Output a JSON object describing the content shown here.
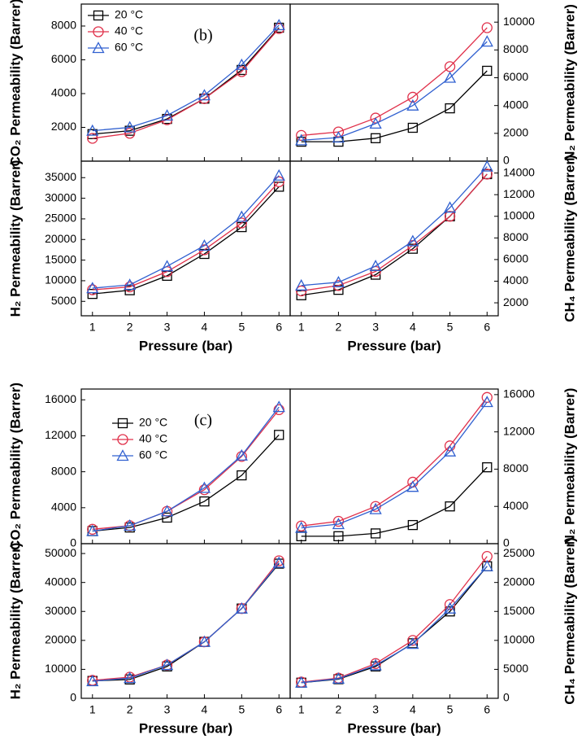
{
  "chart_data": [
    {
      "type": "line",
      "annotation": "(b)",
      "ylabel": "CO₂ Permeability (Barrer)",
      "y_side": "left",
      "legend": "upper left",
      "x": [
        1,
        2,
        3,
        4,
        5,
        6
      ],
      "xlim": [
        0.7,
        6.3
      ],
      "xticks": [
        1,
        2,
        3,
        4,
        5,
        6
      ],
      "ylim": [
        0,
        9300
      ],
      "yticks": [
        2000,
        4000,
        6000,
        8000
      ],
      "series": [
        {
          "name": "20 °C",
          "color": "#000000",
          "marker": "square",
          "values": [
            1600,
            1800,
            2500,
            3700,
            5400,
            7900
          ]
        },
        {
          "name": "40 °C",
          "color": "#e0304a",
          "marker": "circle",
          "values": [
            1350,
            1650,
            2450,
            3700,
            5300,
            7850
          ]
        },
        {
          "name": "60 °C",
          "color": "#3060d0",
          "marker": "triangle",
          "values": [
            1800,
            2000,
            2700,
            3900,
            5700,
            8050
          ]
        }
      ]
    },
    {
      "type": "line",
      "ylabel": "N₂ Permeability (Barrer)",
      "y_side": "right",
      "x": [
        1,
        2,
        3,
        4,
        5,
        6
      ],
      "xlim": [
        0.7,
        6.3
      ],
      "xticks": [
        1,
        2,
        3,
        4,
        5,
        6
      ],
      "ylim": [
        0,
        11300
      ],
      "yticks": [
        0,
        2000,
        4000,
        6000,
        8000,
        10000
      ],
      "series": [
        {
          "color": "#000000",
          "marker": "square",
          "values": [
            1400,
            1400,
            1650,
            2400,
            3800,
            6500
          ]
        },
        {
          "color": "#e0304a",
          "marker": "circle",
          "values": [
            1850,
            2100,
            3100,
            4600,
            6800,
            9600
          ]
        },
        {
          "color": "#3060d0",
          "marker": "triangle",
          "values": [
            1500,
            1700,
            2700,
            4000,
            6000,
            8600
          ]
        }
      ]
    },
    {
      "type": "line",
      "ylabel": "H₂ Permeability (Barrer)",
      "xlabel": "Pressure (bar)",
      "y_side": "left",
      "x": [
        1,
        2,
        3,
        4,
        5,
        6
      ],
      "xlim": [
        0.7,
        6.3
      ],
      "xticks": [
        1,
        2,
        3,
        4,
        5,
        6
      ],
      "ylim": [
        1500,
        39000
      ],
      "yticks": [
        5000,
        10000,
        15000,
        20000,
        25000,
        30000,
        35000
      ],
      "series": [
        {
          "color": "#000000",
          "marker": "square",
          "values": [
            6800,
            7700,
            11200,
            16500,
            23000,
            32800
          ]
        },
        {
          "color": "#e0304a",
          "marker": "circle",
          "values": [
            7800,
            8500,
            12200,
            17500,
            24000,
            34000
          ]
        },
        {
          "color": "#3060d0",
          "marker": "triangle",
          "values": [
            8200,
            9000,
            13500,
            18500,
            25500,
            35500
          ]
        }
      ]
    },
    {
      "type": "line",
      "ylabel": "CH₄ Permeability (Barrer)",
      "xlabel": "Pressure (bar)",
      "y_side": "right",
      "x": [
        1,
        2,
        3,
        4,
        5,
        6
      ],
      "xlim": [
        0.7,
        6.3
      ],
      "xticks": [
        1,
        2,
        3,
        4,
        5,
        6
      ],
      "ylim": [
        800,
        15100
      ],
      "yticks": [
        2000,
        4000,
        6000,
        8000,
        10000,
        12000,
        14000
      ],
      "series": [
        {
          "color": "#000000",
          "marker": "square",
          "values": [
            2700,
            3200,
            4600,
            7000,
            10000,
            13900
          ]
        },
        {
          "color": "#e0304a",
          "marker": "circle",
          "values": [
            3100,
            3600,
            4900,
            7300,
            10000,
            13900
          ]
        },
        {
          "color": "#3060d0",
          "marker": "triangle",
          "values": [
            3600,
            3900,
            5400,
            7700,
            10800,
            14600
          ]
        }
      ]
    },
    {
      "type": "line",
      "annotation": "(c)",
      "ylabel": "CO₂ Permeability (Barrer)",
      "y_side": "left",
      "legend": "upper left",
      "x": [
        1,
        2,
        3,
        4,
        5,
        6
      ],
      "xlim": [
        0.7,
        6.3
      ],
      "xticks": [
        1,
        2,
        3,
        4,
        5,
        6
      ],
      "ylim": [
        0,
        17200
      ],
      "yticks": [
        0,
        4000,
        8000,
        12000,
        16000
      ],
      "series": [
        {
          "name": "20 °C",
          "color": "#000000",
          "marker": "square",
          "values": [
            1400,
            1800,
            2900,
            4700,
            7600,
            12100
          ]
        },
        {
          "name": "40 °C",
          "color": "#e0304a",
          "marker": "circle",
          "values": [
            1600,
            2000,
            3600,
            6000,
            9700,
            14900
          ]
        },
        {
          "name": "60 °C",
          "color": "#3060d0",
          "marker": "triangle",
          "values": [
            1400,
            2000,
            3600,
            6200,
            9800,
            15200
          ]
        }
      ]
    },
    {
      "type": "line",
      "ylabel": "N₂ Permeability (Barrer)",
      "y_side": "right",
      "x": [
        1,
        2,
        3,
        4,
        5,
        6
      ],
      "xlim": [
        0.7,
        6.3
      ],
      "xticks": [
        1,
        2,
        3,
        4,
        5,
        6
      ],
      "ylim": [
        0,
        16600
      ],
      "yticks": [
        0,
        4000,
        8000,
        12000,
        16000
      ],
      "series": [
        {
          "color": "#000000",
          "marker": "square",
          "values": [
            800,
            800,
            1100,
            2000,
            4000,
            8200
          ]
        },
        {
          "color": "#e0304a",
          "marker": "circle",
          "values": [
            1900,
            2400,
            4000,
            6600,
            10500,
            15700
          ]
        },
        {
          "color": "#3060d0",
          "marker": "triangle",
          "values": [
            1700,
            2100,
            3700,
            6100,
            9900,
            15200
          ]
        }
      ]
    },
    {
      "type": "line",
      "ylabel": "H₂ Permeability (Barrer)",
      "xlabel": "Pressure (bar)",
      "y_side": "left",
      "x": [
        1,
        2,
        3,
        4,
        5,
        6
      ],
      "xlim": [
        0.7,
        6.3
      ],
      "xticks": [
        1,
        2,
        3,
        4,
        5,
        6
      ],
      "ylim": [
        0,
        53400
      ],
      "yticks": [
        0,
        10000,
        20000,
        30000,
        40000,
        50000
      ],
      "series": [
        {
          "color": "#000000",
          "marker": "square",
          "values": [
            6000,
            6500,
            11000,
            19500,
            31000,
            46500
          ]
        },
        {
          "color": "#e0304a",
          "marker": "circle",
          "values": [
            6200,
            7300,
            11500,
            19500,
            31000,
            47500
          ]
        },
        {
          "color": "#3060d0",
          "marker": "triangle",
          "values": [
            5900,
            7000,
            11500,
            19500,
            31000,
            46800
          ]
        }
      ]
    },
    {
      "type": "line",
      "ylabel": "CH₄ Permeability (Barrer)",
      "xlabel": "Pressure (bar)",
      "y_side": "right",
      "x": [
        1,
        2,
        3,
        4,
        5,
        6
      ],
      "xlim": [
        0.7,
        6.3
      ],
      "xticks": [
        1,
        2,
        3,
        4,
        5,
        6
      ],
      "ylim": [
        0,
        26700
      ],
      "yticks": [
        0,
        5000,
        10000,
        15000,
        20000,
        25000
      ],
      "series": [
        {
          "color": "#000000",
          "marker": "square",
          "values": [
            2700,
            3300,
            5500,
            9500,
            15000,
            22800
          ]
        },
        {
          "color": "#e0304a",
          "marker": "circle",
          "values": [
            2800,
            3500,
            6000,
            10000,
            16200,
            24500
          ]
        },
        {
          "color": "#3060d0",
          "marker": "triangle",
          "values": [
            2700,
            3400,
            5700,
            9400,
            15500,
            22800
          ]
        }
      ]
    }
  ]
}
